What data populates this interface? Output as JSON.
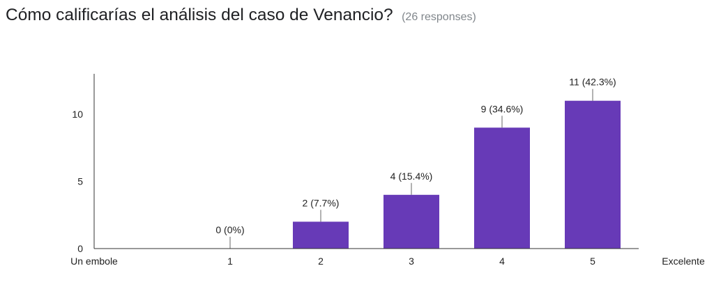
{
  "question": {
    "title": "Cómo calificarías el análisis del caso de Venancio?",
    "responses": "(26 responses)"
  },
  "colors": {
    "bar": "#673ab7",
    "axis": "#333333",
    "label_line": "#666666"
  },
  "chart_data": {
    "type": "bar",
    "categories": [
      "1",
      "2",
      "3",
      "4",
      "5"
    ],
    "values": [
      0,
      2,
      4,
      9,
      11
    ],
    "data_labels": [
      "0 (0%)",
      "2 (7.7%)",
      "4 (15.4%)",
      "9 (34.6%)",
      "11 (42.3%)"
    ],
    "x_end_labels": {
      "low": "Un embole",
      "high": "Excelente"
    },
    "y_ticks": [
      "0",
      "5",
      "10"
    ],
    "ylim": [
      0,
      13
    ],
    "grid": false,
    "legend": "none"
  }
}
